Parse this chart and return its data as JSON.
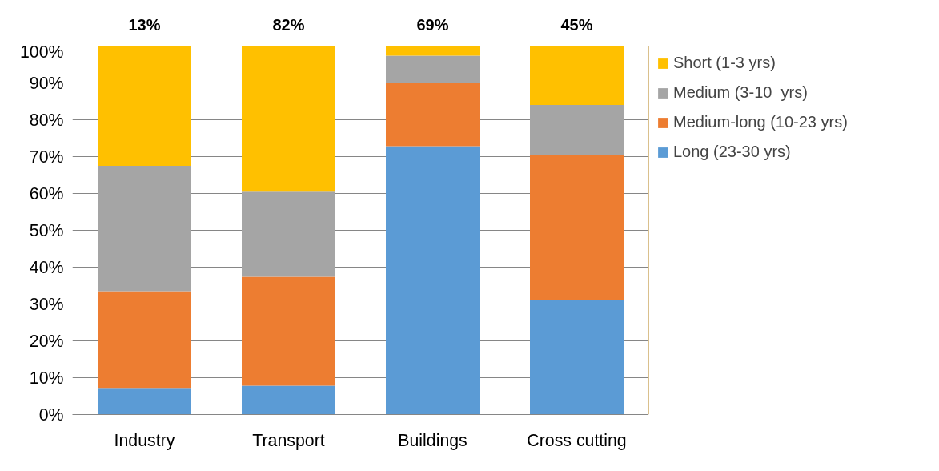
{
  "chart_data": {
    "type": "bar",
    "stacked": true,
    "categories": [
      "Industry",
      "Transport",
      "Buildings",
      "Cross cutting"
    ],
    "series": [
      {
        "name": "Long (23-30 yrs)",
        "color": "#5b9bd5",
        "values": [
          7.0,
          7.8,
          72.8,
          31.2
        ]
      },
      {
        "name": "Medium-long (10-23 yrs)",
        "color": "#ed7d31",
        "values": [
          26.5,
          29.6,
          17.3,
          39.1
        ]
      },
      {
        "name": "Medium (3-10  yrs)",
        "color": "#a5a5a5",
        "values": [
          34.0,
          23.1,
          7.3,
          13.7
        ]
      },
      {
        "name": "Short (1-3 yrs)",
        "color": "#ffc000",
        "values": [
          32.5,
          39.5,
          2.6,
          16.0
        ]
      }
    ],
    "ylim": [
      0,
      100
    ],
    "yticks": [
      {
        "value": 0,
        "label": "0%"
      },
      {
        "value": 10,
        "label": "10%"
      },
      {
        "value": 20,
        "label": "20%"
      },
      {
        "value": 30,
        "label": "30%"
      },
      {
        "value": 40,
        "label": "40%"
      },
      {
        "value": 50,
        "label": "50%"
      },
      {
        "value": 60,
        "label": "60%"
      },
      {
        "value": 70,
        "label": "70%"
      },
      {
        "value": 80,
        "label": "80%"
      },
      {
        "value": 90,
        "label": "90%"
      },
      {
        "value": 100,
        "label": "100%"
      }
    ],
    "annotations": [
      "13%",
      "82%",
      "69%",
      "45%"
    ],
    "grid": "y",
    "legend": "right"
  }
}
